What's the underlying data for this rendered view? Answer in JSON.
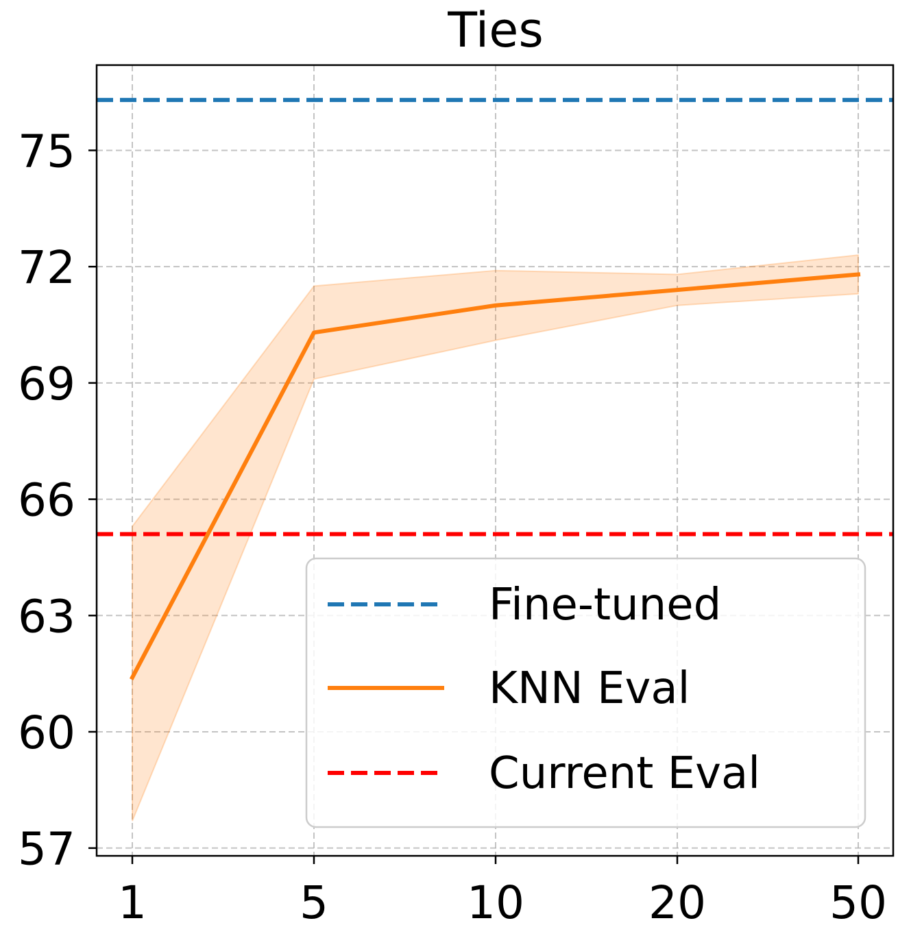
{
  "chart_data": {
    "type": "line",
    "title": "Ties",
    "xlabel": "",
    "ylabel": "",
    "x_categories": [
      "1",
      "5",
      "10",
      "20",
      "50"
    ],
    "y_ticks": [
      57,
      60,
      63,
      66,
      69,
      72,
      75
    ],
    "ylim": [
      56.8,
      77.2
    ],
    "grid": true,
    "legend_position": "lower-right",
    "series": [
      {
        "name": "KNN Eval",
        "kind": "line",
        "color": "#ff7f0e",
        "values": [
          61.4,
          70.3,
          71.0,
          71.4,
          71.8
        ],
        "band_lower": [
          57.7,
          69.1,
          70.1,
          71.0,
          71.3
        ],
        "band_upper": [
          65.3,
          71.5,
          71.9,
          71.8,
          72.3
        ]
      }
    ],
    "reference_lines": [
      {
        "name": "Fine-tuned",
        "value": 76.3,
        "color": "#1f77b4",
        "style": "dashed"
      },
      {
        "name": "Current Eval",
        "value": 65.1,
        "color": "#ff0000",
        "style": "dashed"
      }
    ],
    "legend": [
      {
        "label": "Fine-tuned",
        "color": "#1f77b4",
        "style": "dashed"
      },
      {
        "label": "KNN Eval",
        "color": "#ff7f0e",
        "style": "solid"
      },
      {
        "label": "Current Eval",
        "color": "#ff0000",
        "style": "dashed"
      }
    ]
  }
}
